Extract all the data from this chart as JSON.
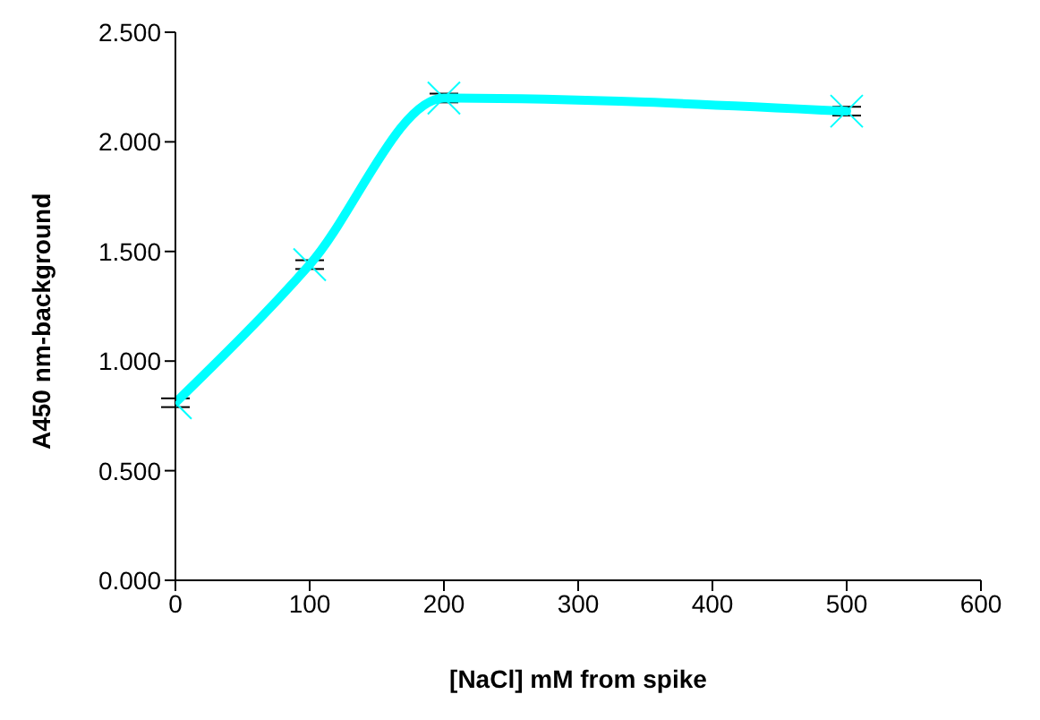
{
  "chart_data": {
    "type": "line",
    "xlabel": "[NaCl] mM from spike",
    "ylabel": "A450 nm-background",
    "x": [
      0,
      100,
      200,
      500
    ],
    "series": [
      {
        "color": "#00ffff",
        "values": [
          0.81,
          1.44,
          2.2,
          2.14
        ],
        "errors": [
          0.02,
          0.02,
          0.02,
          0.02
        ]
      }
    ],
    "xlim": [
      0,
      600
    ],
    "xticks": [
      0,
      100,
      200,
      300,
      400,
      500,
      600
    ],
    "ylim": [
      0,
      2.5
    ],
    "yticks": [
      {
        "value": 0,
        "label": "0.000"
      },
      {
        "value": 0.5,
        "label": "0.500"
      },
      {
        "value": 1,
        "label": "1.000"
      },
      {
        "value": 1.5,
        "label": "1.500"
      },
      {
        "value": 2,
        "label": "2.000"
      },
      {
        "value": 2.5,
        "label": "2.500"
      }
    ],
    "marker": "cross",
    "line_style": "solid",
    "grid": false,
    "legend": false
  }
}
